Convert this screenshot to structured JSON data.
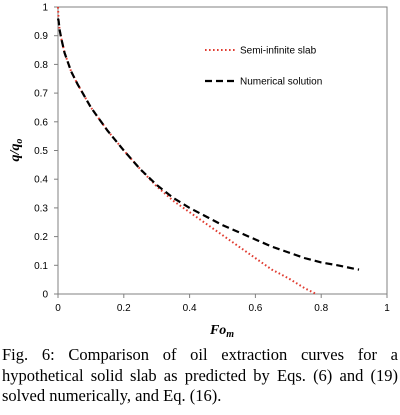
{
  "chart_data": {
    "type": "line",
    "xlim": [
      0,
      1
    ],
    "ylim": [
      0,
      1
    ],
    "x_ticks": [
      "0",
      "0.2",
      "0.4",
      "0.6",
      "0.8",
      "1"
    ],
    "y_ticks": [
      "0",
      "0.1",
      "0.2",
      "0.3",
      "0.4",
      "0.5",
      "0.6",
      "0.7",
      "0.8",
      "0.9",
      "1"
    ],
    "x_tick_values": [
      0,
      0.2,
      0.4,
      0.6,
      0.8,
      1
    ],
    "y_tick_values": [
      0,
      0.1,
      0.2,
      0.3,
      0.4,
      0.5,
      0.6,
      0.7,
      0.8,
      0.9,
      1
    ],
    "xlabel_main": "Fo",
    "xlabel_sub": "m",
    "ylabel_main": "q/q",
    "ylabel_sub": "o",
    "grid": false,
    "legend_position": "top-right",
    "series": [
      {
        "name": "Semi-infinite slab",
        "color": "#e03c31",
        "style": "dotted",
        "x": [
          0.0,
          0.002,
          0.005,
          0.01,
          0.02,
          0.04,
          0.06,
          0.08,
          0.1,
          0.15,
          0.2,
          0.25,
          0.3,
          0.35,
          0.4,
          0.45,
          0.5,
          0.55,
          0.6,
          0.65,
          0.7,
          0.75,
          0.785
        ],
        "y": [
          1.0,
          0.95,
          0.92,
          0.89,
          0.84,
          0.775,
          0.73,
          0.69,
          0.65,
          0.57,
          0.5,
          0.435,
          0.375,
          0.325,
          0.285,
          0.245,
          0.205,
          0.165,
          0.125,
          0.085,
          0.055,
          0.02,
          0.0
        ]
      },
      {
        "name": "Numerical solution",
        "color": "#000000",
        "style": "dashed",
        "x": [
          0.0,
          0.002,
          0.005,
          0.01,
          0.02,
          0.04,
          0.06,
          0.08,
          0.1,
          0.15,
          0.2,
          0.25,
          0.3,
          0.35,
          0.4,
          0.45,
          0.5,
          0.55,
          0.6,
          0.65,
          0.7,
          0.75,
          0.8,
          0.85,
          0.9,
          0.915
        ],
        "y": [
          0.96,
          0.95,
          0.92,
          0.89,
          0.84,
          0.775,
          0.73,
          0.69,
          0.65,
          0.57,
          0.5,
          0.435,
          0.38,
          0.335,
          0.3,
          0.27,
          0.24,
          0.215,
          0.19,
          0.165,
          0.145,
          0.125,
          0.11,
          0.1,
          0.088,
          0.085
        ]
      }
    ]
  },
  "caption": "Fig.  6:  Comparison of oil extraction curves for a hypothetical solid slab as predicted by Eqs. (6) and (19) solved numerically, and Eq. (16)."
}
